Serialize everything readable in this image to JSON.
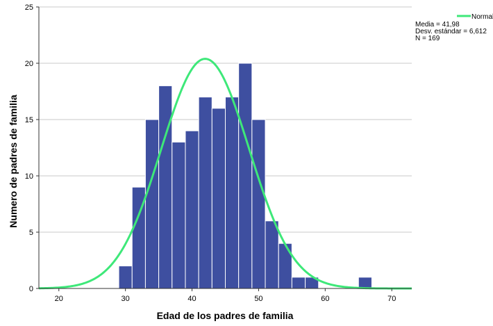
{
  "colors": {
    "bar_fill": "#3e4fa0",
    "bar_stroke": "#ffffff",
    "normal_curve": "#3ee879",
    "gridline": "#c8c8c8",
    "axis": "#333333",
    "background": "#ffffff"
  },
  "legend": {
    "label": "Normal"
  },
  "stats": {
    "mean": "Media = 41,98",
    "sd": "Desv. estándar = 6,612",
    "n": "N = 169"
  },
  "chart_data": {
    "type": "bar",
    "subtype": "histogram",
    "xlabel": "Edad de los padres de familia",
    "ylabel": "Numero de padres de familia",
    "xlim": [
      17,
      73
    ],
    "ylim": [
      0,
      25
    ],
    "x_ticks": [
      20,
      30,
      40,
      50,
      60,
      70
    ],
    "y_ticks": [
      0,
      5,
      10,
      15,
      20,
      25
    ],
    "grid": "horizontal",
    "legend_position": "top-right",
    "bin_width": 2,
    "bins": [
      {
        "start": 29,
        "count": 2
      },
      {
        "start": 31,
        "count": 9
      },
      {
        "start": 33,
        "count": 15
      },
      {
        "start": 35,
        "count": 18
      },
      {
        "start": 37,
        "count": 13
      },
      {
        "start": 39,
        "count": 14
      },
      {
        "start": 41,
        "count": 17
      },
      {
        "start": 43,
        "count": 16
      },
      {
        "start": 45,
        "count": 17
      },
      {
        "start": 47,
        "count": 20
      },
      {
        "start": 49,
        "count": 15
      },
      {
        "start": 51,
        "count": 6
      },
      {
        "start": 53,
        "count": 4
      },
      {
        "start": 55,
        "count": 1
      },
      {
        "start": 57,
        "count": 1
      },
      {
        "start": 65,
        "count": 1
      }
    ],
    "normal_curve": {
      "mean": 41.98,
      "sd": 6.612,
      "n": 169
    }
  }
}
